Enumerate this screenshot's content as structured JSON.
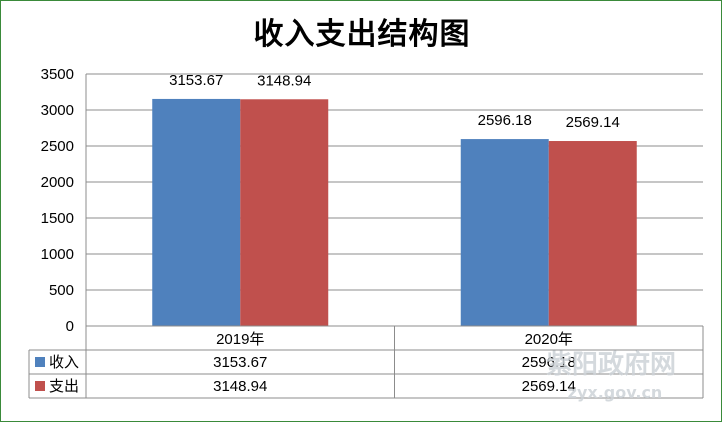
{
  "chart_data": {
    "type": "bar",
    "title": "收入支出结构图",
    "categories": [
      "2019年",
      "2020年"
    ],
    "series": [
      {
        "name": "收入",
        "values": [
          3153.67,
          2596.18
        ],
        "color": "#4f81bd"
      },
      {
        "name": "支出",
        "values": [
          3148.94,
          2569.14
        ],
        "color": "#c0504d"
      }
    ],
    "data_labels": [
      [
        "3153.67",
        "2596.18"
      ],
      [
        "3148.94",
        "2569.14"
      ]
    ],
    "yticks": [
      "0",
      "500",
      "1000",
      "1500",
      "2000",
      "2500",
      "3000",
      "3500"
    ],
    "ylim": [
      0,
      3500
    ],
    "grid": true,
    "legend": "data-table",
    "data_table": true
  },
  "watermark": {
    "main": "紫阳政府网",
    "sub": "zyx.gov.cn"
  }
}
